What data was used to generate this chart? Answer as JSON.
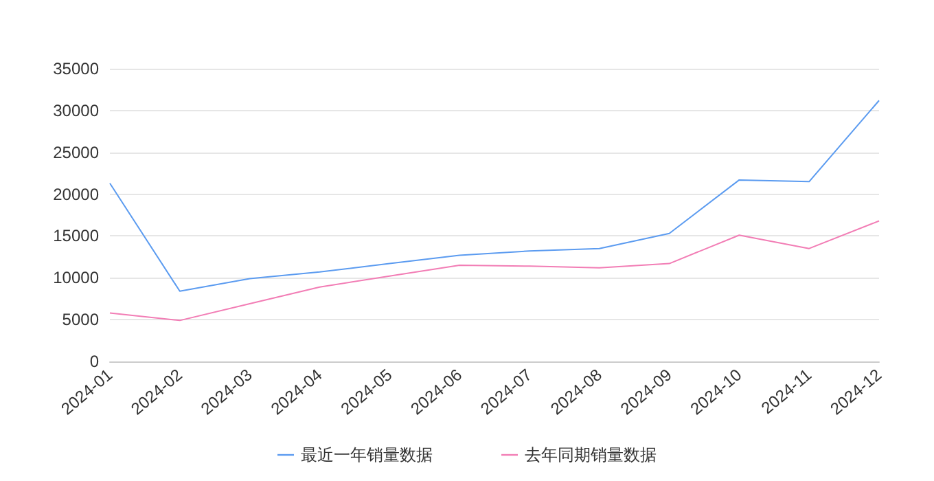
{
  "chart_data": {
    "type": "line",
    "categories": [
      "2024-01",
      "2024-02",
      "2024-03",
      "2024-04",
      "2024-05",
      "2024-06",
      "2024-07",
      "2024-08",
      "2024-09",
      "2024-10",
      "2024-11",
      "2024-12"
    ],
    "series": [
      {
        "name": "最近一年销量数据",
        "color": "#5b9bf0",
        "values": [
          21300,
          8400,
          9900,
          10700,
          11700,
          12700,
          13200,
          13500,
          15300,
          21700,
          21500,
          31200
        ]
      },
      {
        "name": "去年同期销量数据",
        "color": "#f27db5",
        "values": [
          5800,
          4900,
          6900,
          8900,
          10200,
          11500,
          11400,
          11200,
          11700,
          15100,
          13500,
          16800
        ]
      }
    ],
    "ylim": [
      0,
      35000
    ],
    "yticks": [
      0,
      5000,
      10000,
      15000,
      20000,
      25000,
      30000,
      35000
    ],
    "grid": "y",
    "legend": "bottom",
    "marker": "none",
    "line_style": "solid"
  }
}
